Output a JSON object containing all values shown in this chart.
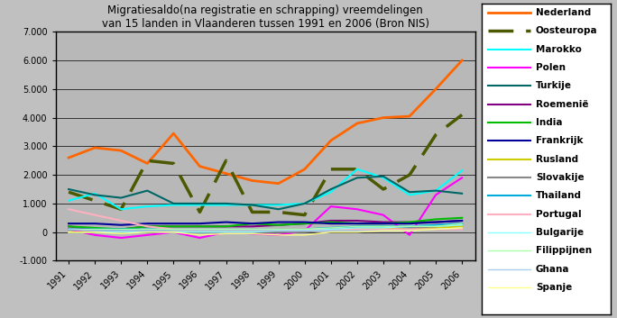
{
  "title": "Migratiesaldo(na registratie en schrapping) vreemdelingen\nvan 15 landen in Vlaanderen tussen 1991 en 2006 (Bron NIS)",
  "years": [
    1991,
    1992,
    1993,
    1994,
    1995,
    1996,
    1997,
    1998,
    1999,
    2000,
    2001,
    2002,
    2003,
    2004,
    2005,
    2006
  ],
  "series": {
    "Nederland": [
      2600,
      2950,
      2850,
      2400,
      3450,
      2300,
      2050,
      1800,
      1700,
      2200,
      3200,
      3800,
      4000,
      4050,
      5000,
      6000
    ],
    "Oosteuropa": [
      1400,
      1100,
      800,
      2500,
      2400,
      700,
      2500,
      700,
      700,
      600,
      2200,
      2200,
      1500,
      2000,
      3400,
      4100
    ],
    "Marokko": [
      1100,
      1350,
      800,
      900,
      950,
      950,
      950,
      950,
      950,
      1000,
      1400,
      2200,
      1900,
      1300,
      1450,
      2150
    ],
    "Polen": [
      100,
      -100,
      -200,
      -100,
      0,
      -200,
      0,
      -50,
      -100,
      50,
      900,
      800,
      600,
      -100,
      1300,
      1900
    ],
    "Turkije": [
      1500,
      1300,
      1200,
      1450,
      1000,
      1000,
      1000,
      950,
      800,
      1000,
      1500,
      1900,
      1950,
      1400,
      1450,
      1350
    ],
    "Roemenie": [
      200,
      100,
      100,
      200,
      200,
      200,
      200,
      200,
      250,
      300,
      400,
      400,
      350,
      350,
      350,
      400
    ],
    "India": [
      200,
      150,
      100,
      200,
      200,
      200,
      200,
      300,
      250,
      300,
      350,
      300,
      300,
      350,
      450,
      500
    ],
    "Frankrijk": [
      300,
      300,
      250,
      300,
      300,
      300,
      350,
      300,
      350,
      350,
      300,
      300,
      300,
      300,
      350,
      400
    ],
    "Rusland": [
      0,
      0,
      0,
      50,
      50,
      50,
      50,
      50,
      100,
      100,
      100,
      100,
      150,
      150,
      150,
      200
    ],
    "Slovakije": [
      100,
      50,
      0,
      50,
      0,
      0,
      0,
      0,
      0,
      0,
      100,
      200,
      200,
      150,
      200,
      300
    ],
    "Thailand": [
      100,
      100,
      100,
      100,
      100,
      100,
      100,
      100,
      100,
      100,
      150,
      200,
      200,
      200,
      250,
      300
    ],
    "Portugal": [
      800,
      600,
      400,
      200,
      100,
      100,
      100,
      100,
      100,
      100,
      100,
      100,
      100,
      100,
      100,
      100
    ],
    "Bulgarije": [
      0,
      0,
      0,
      0,
      0,
      0,
      0,
      0,
      50,
      50,
      100,
      150,
      150,
      200,
      200,
      250
    ],
    "Filippijnen": [
      100,
      100,
      100,
      100,
      100,
      100,
      100,
      100,
      100,
      100,
      150,
      200,
      200,
      200,
      200,
      300
    ],
    "Ghana": [
      100,
      50,
      50,
      50,
      50,
      50,
      50,
      50,
      50,
      50,
      50,
      50,
      50,
      50,
      100,
      150
    ],
    "Spanje": [
      0,
      0,
      -50,
      0,
      0,
      -100,
      -50,
      -50,
      -100,
      -100,
      0,
      0,
      50,
      50,
      100,
      150
    ]
  },
  "line_styles": {
    "Nederland": {
      "color": "#FF6600",
      "linestyle": "-",
      "linewidth": 2.0,
      "dashes": null
    },
    "Oosteuropa": {
      "color": "#4C5900",
      "linestyle": "--",
      "linewidth": 2.5,
      "dashes": [
        8,
        4
      ]
    },
    "Marokko": {
      "color": "#00FFFF",
      "linestyle": "-",
      "linewidth": 1.5,
      "dashes": null
    },
    "Polen": {
      "color": "#FF00FF",
      "linestyle": "-",
      "linewidth": 1.5,
      "dashes": null
    },
    "Turkije": {
      "color": "#006666",
      "linestyle": "-",
      "linewidth": 1.5,
      "dashes": null
    },
    "Roemenie": {
      "color": "#800080",
      "linestyle": "-",
      "linewidth": 1.5,
      "dashes": null
    },
    "India": {
      "color": "#00BB00",
      "linestyle": "-",
      "linewidth": 1.5,
      "dashes": null
    },
    "Frankrijk": {
      "color": "#000099",
      "linestyle": "-",
      "linewidth": 1.5,
      "dashes": null
    },
    "Rusland": {
      "color": "#CCCC00",
      "linestyle": "-",
      "linewidth": 1.5,
      "dashes": null
    },
    "Slovakije": {
      "color": "#888888",
      "linestyle": "-",
      "linewidth": 1.5,
      "dashes": null
    },
    "Thailand": {
      "color": "#00AADD",
      "linestyle": "-",
      "linewidth": 1.5,
      "dashes": null
    },
    "Portugal": {
      "color": "#FFB0C0",
      "linestyle": "-",
      "linewidth": 1.5,
      "dashes": null
    },
    "Bulgarije": {
      "color": "#88FFFF",
      "linestyle": "-",
      "linewidth": 1.0,
      "dashes": null
    },
    "Filippijnen": {
      "color": "#AAFFAA",
      "linestyle": "-",
      "linewidth": 1.0,
      "dashes": null
    },
    "Ghana": {
      "color": "#AACCEE",
      "linestyle": "-",
      "linewidth": 1.0,
      "dashes": null
    },
    "Spanje": {
      "color": "#FFFF88",
      "linestyle": "-",
      "linewidth": 1.0,
      "dashes": null
    }
  },
  "legend_labels": {
    "Nederland": "Nederland",
    "Oosteuropa": "Oosteuropa",
    "Marokko": "Marokko",
    "Polen": "Polen",
    "Turkije": "Turkije",
    "Roemenie": "Roemenië",
    "India": "India",
    "Frankrijk": "Frankrijk",
    "Rusland": "Rusland",
    "Slovakije": "Slovakije",
    "Thailand": "Thailand",
    "Portugal": "Portugal",
    "Bulgarije": "Bulgarije",
    "Filippijnen": "Filippijnen",
    "Ghana": "Ghana",
    "Spanje": "Spanje"
  },
  "ylim": [
    -1000,
    7000
  ],
  "yticks": [
    -1000,
    0,
    1000,
    2000,
    3000,
    4000,
    5000,
    6000,
    7000
  ],
  "fig_bg_color": "#C0C0C0",
  "plot_bg_color": "#B8B8B8",
  "legend_bg_color": "#FFFFFF"
}
